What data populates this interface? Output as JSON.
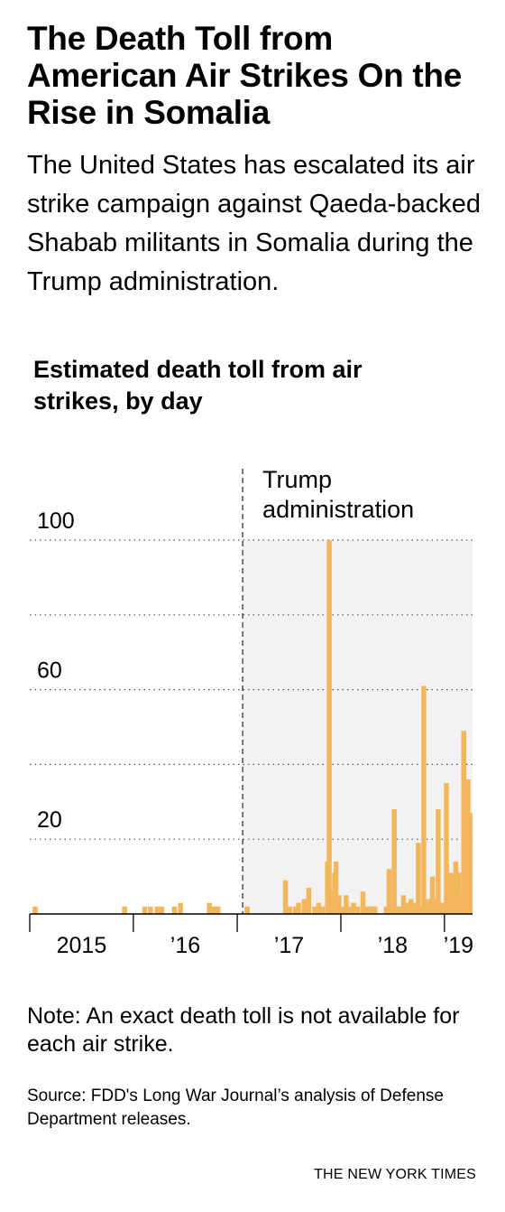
{
  "headline": "The Death Toll from American Air Strikes On the Rise in Somalia",
  "dek": "The United States has escalated its air strike campaign against Qaeda-backed Shabab militants in Somalia during the Trump administration.",
  "note": "Note: An exact death toll is not available for each air strike.",
  "source": "Source: FDD's Long War Journal’s analysis of Defense Department releases.",
  "credit": "THE NEW YORK TIMES",
  "colors": {
    "bar": "#f2b75c",
    "shade": "#f2f2f2",
    "text": "#000000",
    "grid": "#555555"
  },
  "chart_data": {
    "type": "bar",
    "title": "Estimated death toll from air strikes, by day",
    "xlabel": "",
    "ylabel": "",
    "ylim": [
      0,
      100
    ],
    "yticks": [
      100,
      60,
      20
    ],
    "grid": true,
    "gridlines": [
      20,
      40,
      60,
      80,
      100
    ],
    "xlim": [
      "2015-01-01",
      "2019-04-10"
    ],
    "xticks": [
      {
        "label": "2015",
        "date": "2015-01-01"
      },
      {
        "label": "’16",
        "date": "2016-01-01"
      },
      {
        "label": "’17",
        "date": "2017-01-01"
      },
      {
        "label": "’18",
        "date": "2018-01-01"
      },
      {
        "label": "’19",
        "date": "2019-01-01"
      }
    ],
    "annotation": {
      "label_line1": "Trump",
      "label_line2": "administration",
      "date": "2017-01-20"
    },
    "dates": [
      "2015-01-20",
      "2015-12-01",
      "2016-02-10",
      "2016-03-01",
      "2016-03-25",
      "2016-04-10",
      "2016-05-25",
      "2016-06-15",
      "2016-09-25",
      "2016-10-10",
      "2016-10-25",
      "2017-02-05",
      "2017-06-20",
      "2017-07-05",
      "2017-07-25",
      "2017-08-05",
      "2017-08-25",
      "2017-09-10",
      "2017-10-01",
      "2017-10-15",
      "2017-10-28",
      "2017-11-15",
      "2017-11-21",
      "2017-12-01",
      "2017-12-10",
      "2017-12-15",
      "2017-12-25",
      "2018-01-08",
      "2018-01-20",
      "2018-02-05",
      "2018-02-15",
      "2018-03-01",
      "2018-03-20",
      "2018-04-05",
      "2018-04-15",
      "2018-05-01",
      "2018-06-10",
      "2018-06-20",
      "2018-07-08",
      "2018-07-20",
      "2018-07-31",
      "2018-08-10",
      "2018-08-25",
      "2018-09-05",
      "2018-09-15",
      "2018-10-01",
      "2018-10-12",
      "2018-10-20",
      "2018-11-01",
      "2018-11-10",
      "2018-11-20",
      "2018-12-01",
      "2018-12-10",
      "2018-12-20",
      "2019-01-01",
      "2019-01-08",
      "2019-01-15",
      "2019-01-25",
      "2019-02-01",
      "2019-02-10",
      "2019-02-20",
      "2019-02-28",
      "2019-03-10",
      "2019-03-18",
      "2019-03-25",
      "2019-04-01"
    ],
    "values": [
      2,
      2,
      2,
      2,
      2,
      2,
      2,
      3,
      3,
      2,
      2,
      2,
      9,
      2,
      2,
      3,
      4,
      7,
      2,
      3,
      2,
      14,
      100,
      6,
      11,
      14,
      5,
      2,
      5,
      2,
      3,
      2,
      6,
      2,
      2,
      2,
      2,
      12,
      28,
      2,
      2,
      5,
      3,
      4,
      3,
      19,
      2,
      61,
      4,
      4,
      10,
      4,
      28,
      3,
      3,
      35,
      10,
      11,
      11,
      14,
      11,
      5,
      49,
      11,
      36,
      27
    ]
  }
}
